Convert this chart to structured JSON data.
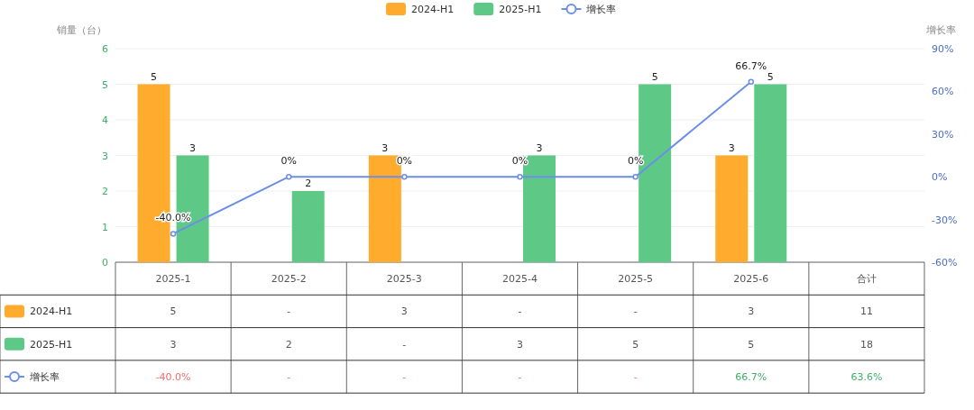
{
  "chart_data": [
    {
      "type": "bar",
      "categories": [
        "2025-1",
        "2025-2",
        "2025-3",
        "2025-4",
        "2025-5",
        "2025-6",
        "合计"
      ],
      "series": [
        {
          "name": "2024-H1",
          "type": "bar",
          "color": "#ffab2e",
          "values": [
            5,
            null,
            3,
            null,
            null,
            3,
            null
          ],
          "value_labels": [
            "5",
            null,
            "3",
            null,
            null,
            "3",
            null
          ]
        },
        {
          "name": "2025-H1",
          "type": "bar",
          "color": "#5ec987",
          "values": [
            3,
            2,
            null,
            3,
            5,
            5,
            null
          ],
          "value_labels": [
            "3",
            "2",
            null,
            "3",
            "5",
            "5",
            null
          ]
        },
        {
          "name": "增长率",
          "type": "line",
          "axis": "y2",
          "color": "#6b8fe8",
          "values": [
            -40,
            0,
            0,
            0,
            0,
            66.7,
            null
          ],
          "value_labels": [
            "-40.0%",
            "0%",
            "0%",
            "0%",
            "0%",
            "66.7%",
            null
          ]
        }
      ],
      "ylabel": "销量（台）",
      "y2label": "增长率",
      "ylim": [
        0,
        6
      ],
      "yticks": [
        0,
        1,
        2,
        3,
        4,
        5,
        6
      ],
      "y2lim": [
        -60,
        90
      ],
      "y2ticks": [
        {
          "value": -60,
          "label": "-60%"
        },
        {
          "value": -30,
          "label": "-30%"
        },
        {
          "value": 0,
          "label": "0%"
        },
        {
          "value": 30,
          "label": "30%"
        },
        {
          "value": 60,
          "label": "60%"
        },
        {
          "value": 90,
          "label": "90%"
        }
      ],
      "grid": "y",
      "legend": "top",
      "marker": "circle"
    },
    {
      "type": "other",
      "series": [
        {
          "name": "2024-H1",
          "type": "bar",
          "color": "#ffab2e"
        },
        {
          "name": "2025-H1",
          "type": "bar",
          "color": "#5ec987"
        },
        {
          "name": "增长率",
          "type": "line",
          "color": "#6b8fe8"
        }
      ],
      "annotations": [
        "5",
        "-",
        "3",
        "-",
        "-",
        "3",
        "11",
        "3",
        "2",
        "-",
        "3",
        "5",
        "5",
        "18",
        "-40.0%",
        "-",
        "-",
        "-",
        "-",
        "66.7%",
        "63.6%"
      ]
    }
  ]
}
